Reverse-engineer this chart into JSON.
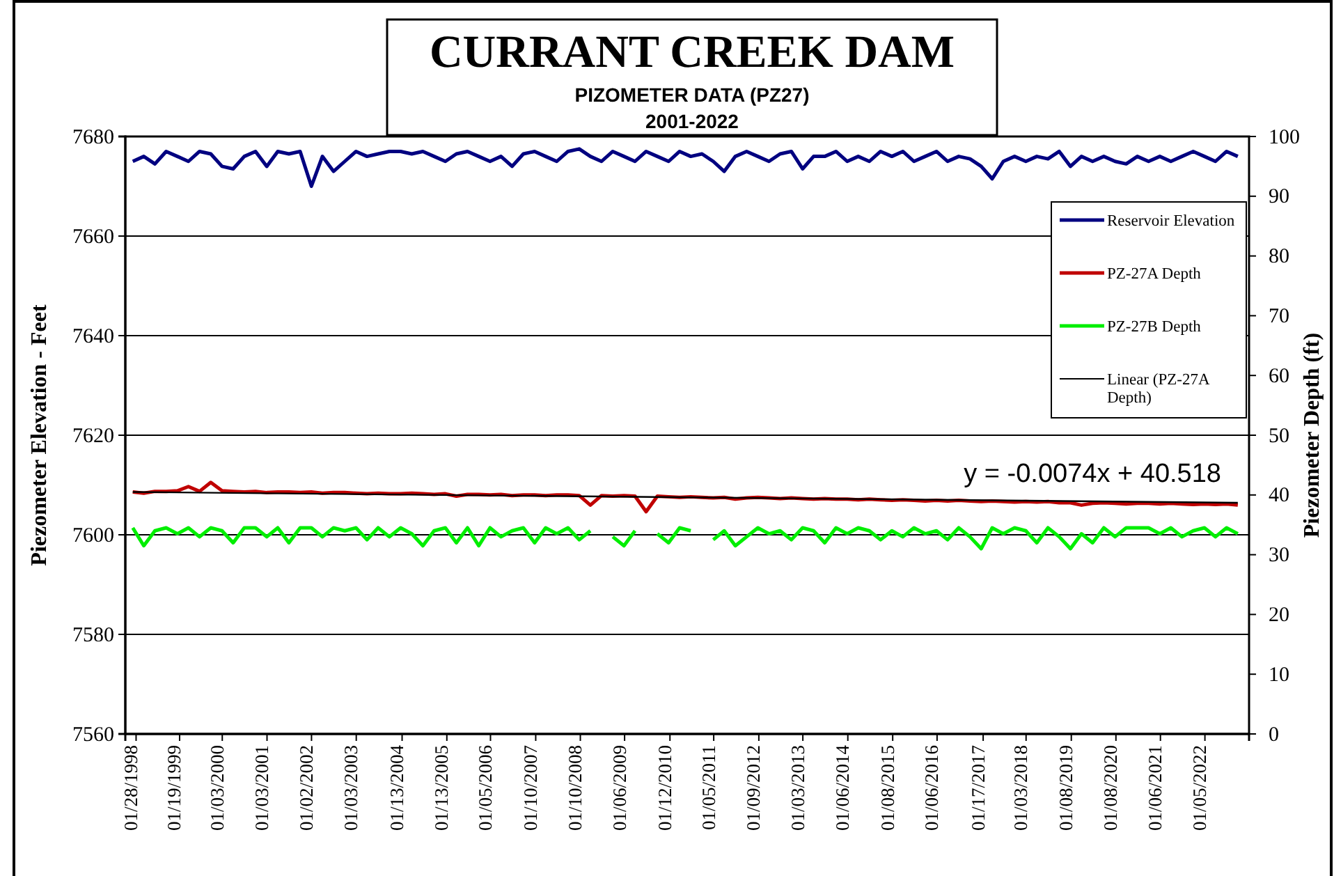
{
  "chart_data": {
    "type": "line",
    "title": "CURRANT CREEK DAM",
    "subtitle": "PIZOMETER DATA (PZ27)",
    "annotations": [
      "2001-2022",
      "y = -0.0074x + 40.518"
    ],
    "ylabel": "Piezometer Elevation - Feet",
    "y2label": "Piezometer Depth (ft)",
    "x": [
      "1998-01",
      "1998-04",
      "1998-07",
      "1998-10",
      "1999-01",
      "1999-04",
      "1999-07",
      "1999-10",
      "2000-01",
      "2000-04",
      "2000-07",
      "2000-10",
      "2001-01",
      "2001-04",
      "2001-07",
      "2001-10",
      "2002-01",
      "2002-04",
      "2002-07",
      "2002-10",
      "2003-01",
      "2003-04",
      "2003-07",
      "2003-10",
      "2004-01",
      "2004-04",
      "2004-07",
      "2004-10",
      "2005-01",
      "2005-04",
      "2005-07",
      "2005-10",
      "2006-01",
      "2006-04",
      "2006-07",
      "2006-10",
      "2007-01",
      "2007-04",
      "2007-07",
      "2007-10",
      "2008-01",
      "2008-04",
      "2008-07",
      "2008-10",
      "2009-01",
      "2009-04",
      "2009-07",
      "2009-10",
      "2010-01",
      "2010-04",
      "2010-07",
      "2010-10",
      "2011-01",
      "2011-04",
      "2011-07",
      "2011-10",
      "2012-01",
      "2012-04",
      "2012-07",
      "2012-10",
      "2013-01",
      "2013-04",
      "2013-07",
      "2013-10",
      "2014-01",
      "2014-04",
      "2014-07",
      "2014-10",
      "2015-01",
      "2015-04",
      "2015-07",
      "2015-10",
      "2016-01",
      "2016-04",
      "2016-07",
      "2016-10",
      "2017-01",
      "2017-04",
      "2017-07",
      "2017-10",
      "2018-01",
      "2018-04",
      "2018-07",
      "2018-10",
      "2019-01",
      "2019-04",
      "2019-07",
      "2019-10",
      "2020-01",
      "2020-04",
      "2020-07",
      "2020-10",
      "2021-01",
      "2021-04",
      "2021-07",
      "2021-10",
      "2022-01",
      "2022-04",
      "2022-07",
      "2022-10"
    ],
    "series": [
      {
        "name": "Reservoir Elevation",
        "color": "#000080",
        "values": [
          7675,
          7676,
          7674.5,
          7677,
          7676,
          7675,
          7677,
          7676.5,
          7674,
          7673.5,
          7676,
          7677,
          7674,
          7677,
          7676.5,
          7677,
          7670,
          7676,
          7673,
          7675,
          7677,
          7676,
          7676.5,
          7677,
          7677,
          7676.5,
          7677,
          7676,
          7675,
          7676.5,
          7677,
          7676,
          7675,
          7676,
          7674,
          7676.5,
          7677,
          7676,
          7675,
          7677,
          7677.5,
          7676,
          7675,
          7677,
          7676,
          7675,
          7677,
          7676,
          7675,
          7677,
          7676,
          7676.5,
          7675,
          7673,
          7676,
          7677,
          7676,
          7675,
          7676.5,
          7677,
          7673.5,
          7676,
          7676,
          7677,
          7675,
          7676,
          7675,
          7677,
          7676,
          7677,
          7675,
          7676,
          7677,
          7675,
          7676,
          7675.5,
          7674,
          7671.5,
          7675,
          7676,
          7675,
          7676,
          7675.5,
          7677,
          7674,
          7676,
          7675,
          7676,
          7675,
          7674.5,
          7676,
          7675,
          7676,
          7675,
          7676,
          7677,
          7676,
          7675,
          7677,
          7676
        ]
      },
      {
        "name": "PZ-27A Depth",
        "color": "#c00000",
        "axis": "y2",
        "values": [
          40.5,
          40.3,
          40.6,
          40.6,
          40.7,
          41.4,
          40.6,
          42.1,
          40.7,
          40.6,
          40.5,
          40.6,
          40.4,
          40.5,
          40.5,
          40.4,
          40.5,
          40.3,
          40.4,
          40.4,
          40.3,
          40.2,
          40.3,
          40.2,
          40.2,
          40.3,
          40.2,
          40.1,
          40.2,
          39.8,
          40.1,
          40.1,
          40.0,
          40.1,
          39.9,
          40.0,
          40.0,
          39.9,
          40.0,
          40.0,
          39.9,
          38.3,
          39.9,
          39.8,
          39.9,
          39.8,
          37.2,
          39.8,
          39.7,
          39.6,
          39.7,
          39.6,
          39.5,
          39.6,
          39.3,
          39.5,
          39.6,
          39.5,
          39.4,
          39.5,
          39.4,
          39.3,
          39.4,
          39.3,
          39.3,
          39.2,
          39.3,
          39.2,
          39.1,
          39.2,
          39.1,
          39.0,
          39.1,
          39.0,
          39.1,
          39.0,
          38.9,
          39.0,
          38.9,
          38.8,
          38.9,
          38.8,
          38.9,
          38.7,
          38.7,
          38.3,
          38.6,
          38.7,
          38.6,
          38.5,
          38.6,
          38.6,
          38.5,
          38.6,
          38.5,
          38.4,
          38.5,
          38.4,
          38.5,
          38.3
        ]
      },
      {
        "name": "PZ-27B Depth",
        "color": "#00ee00",
        "axis": "y2",
        "values": [
          34.5,
          31.5,
          34.0,
          34.5,
          33.5,
          34.5,
          33.0,
          34.5,
          34.0,
          32.0,
          34.5,
          34.5,
          33.0,
          34.5,
          32.0,
          34.5,
          34.5,
          33.0,
          34.5,
          34.0,
          34.5,
          32.5,
          34.5,
          33.0,
          34.5,
          33.5,
          31.5,
          34.0,
          34.5,
          32.0,
          34.5,
          31.5,
          34.5,
          33.0,
          34.0,
          34.5,
          32.0,
          34.5,
          33.5,
          34.5,
          32.5,
          34.0,
          null,
          33.0,
          31.5,
          34.0,
          null,
          33.5,
          32.0,
          34.5,
          34.0,
          null,
          32.5,
          34.0,
          31.5,
          33.0,
          34.5,
          33.5,
          34.0,
          32.5,
          34.5,
          34.0,
          32.0,
          34.5,
          33.5,
          34.5,
          34.0,
          32.5,
          34.0,
          33.0,
          34.5,
          33.5,
          34.0,
          32.5,
          34.5,
          33.0,
          31.0,
          34.5,
          33.5,
          34.5,
          34.0,
          32.0,
          34.5,
          33.0,
          31.0,
          33.5,
          32.0,
          34.5,
          33.0,
          34.5,
          34.5,
          34.5,
          33.5,
          34.5,
          33.0,
          34.0,
          34.5,
          33.0,
          34.5,
          33.5
        ]
      },
      {
        "name": "Linear (PZ-27A Depth)",
        "color": "#000000",
        "axis": "y2",
        "x": [
          "1998-01",
          "2022-10"
        ],
        "values": [
          40.5,
          38.7
        ]
      }
    ],
    "xlim": [
      "1997-11",
      "2023-01"
    ],
    "xticks": [
      {
        "value": "1998-01-28",
        "label": "01/28/1998"
      },
      {
        "value": "1999-01-19",
        "label": "01/19/1999"
      },
      {
        "value": "2000-01-03",
        "label": "01/03/2000"
      },
      {
        "value": "2001-01-03",
        "label": "01/03/2001"
      },
      {
        "value": "2002-01-02",
        "label": "01/02/2002"
      },
      {
        "value": "2003-01-03",
        "label": "01/03/2003"
      },
      {
        "value": "2004-01-13",
        "label": "01/13/2004"
      },
      {
        "value": "2005-01-13",
        "label": "01/13/2005"
      },
      {
        "value": "2006-01-05",
        "label": "01/05/2006"
      },
      {
        "value": "2007-01-10",
        "label": "01/10/2007"
      },
      {
        "value": "2008-01-10",
        "label": "01/10/2008"
      },
      {
        "value": "2009-01-06",
        "label": "01/06/2009"
      },
      {
        "value": "2010-01-12",
        "label": "01/12/2010"
      },
      {
        "value": "2011-01-05",
        "label": "01/05/2011"
      },
      {
        "value": "2012-01-09",
        "label": "01/09/2012"
      },
      {
        "value": "2013-01-03",
        "label": "01/03/2013"
      },
      {
        "value": "2014-01-06",
        "label": "01/06/2014"
      },
      {
        "value": "2015-01-08",
        "label": "01/08/2015"
      },
      {
        "value": "2016-01-06",
        "label": "01/06/2016"
      },
      {
        "value": "2017-01-17",
        "label": "01/17/2017"
      },
      {
        "value": "2018-01-03",
        "label": "01/03/2018"
      },
      {
        "value": "2019-01-08",
        "label": "01/08/2019"
      },
      {
        "value": "2020-01-08",
        "label": "01/08/2020"
      },
      {
        "value": "2021-01-06",
        "label": "01/06/2021"
      },
      {
        "value": "2022-01-05",
        "label": "01/05/2022"
      }
    ],
    "ylim": [
      7560,
      7680
    ],
    "yticks": [
      7560,
      7580,
      7600,
      7620,
      7640,
      7660,
      7680
    ],
    "y2lim": [
      0,
      100
    ],
    "y2ticks": [
      0,
      10,
      20,
      30,
      40,
      50,
      60,
      70,
      80,
      90,
      100
    ],
    "grid": "y",
    "legend": "top right",
    "line_style": "solid",
    "marker": "none"
  }
}
